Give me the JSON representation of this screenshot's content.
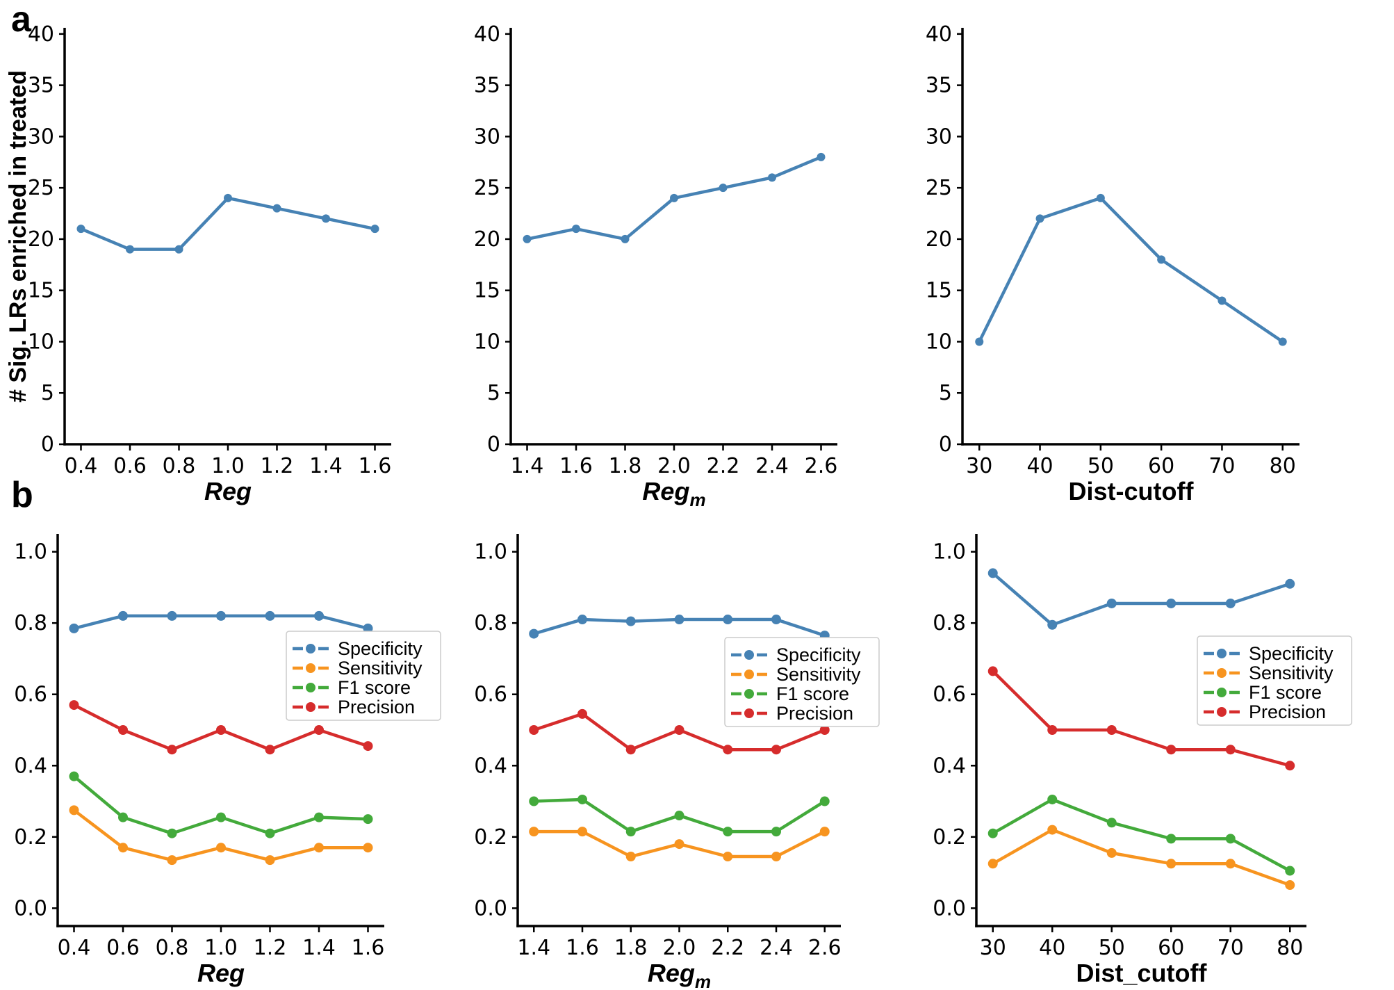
{
  "figure": {
    "panel_a_label": "a",
    "panel_b_label": "b",
    "row_a_ylabel": "# Sig. LRs enriched in treated"
  },
  "colors": {
    "blue": "#4682b4",
    "orange": "#f7941f",
    "green": "#43aa3b",
    "red": "#d62c2c",
    "axis": "#000000",
    "legend_border": "#cccccc",
    "background": "#ffffff"
  },
  "chart_data": [
    {
      "id": "a1",
      "type": "line",
      "panel": "a",
      "title": "",
      "ylabel": "# Sig. LRs enriched in treated",
      "xlabel": {
        "text": "Reg",
        "sub": "",
        "italic": true
      },
      "x": [
        0.4,
        0.6,
        0.8,
        1.0,
        1.2,
        1.4,
        1.6
      ],
      "xtick_labels": [
        "0.4",
        "0.6",
        "0.8",
        "1.0",
        "1.2",
        "1.4",
        "1.6"
      ],
      "ylim": [
        0,
        40
      ],
      "yticks": [
        0,
        5,
        10,
        15,
        20,
        25,
        30,
        35,
        40
      ],
      "ytick_labels": [
        "0",
        "5",
        "10",
        "15",
        "20",
        "25",
        "30",
        "35",
        "40"
      ],
      "grid": false,
      "legend": false,
      "series": [
        {
          "name": "# Sig. LRs enriched in treated",
          "color": "blue",
          "values": [
            21,
            19,
            19,
            24,
            23,
            22,
            21
          ]
        }
      ]
    },
    {
      "id": "a2",
      "type": "line",
      "panel": "a",
      "title": "",
      "ylabel": "",
      "xlabel": {
        "text": "Reg",
        "sub": "m",
        "italic": true
      },
      "x": [
        1.4,
        1.6,
        1.8,
        2.0,
        2.2,
        2.4,
        2.6
      ],
      "xtick_labels": [
        "1.4",
        "1.6",
        "1.8",
        "2.0",
        "2.2",
        "2.4",
        "2.6"
      ],
      "ylim": [
        0,
        40
      ],
      "yticks": [
        0,
        5,
        10,
        15,
        20,
        25,
        30,
        35,
        40
      ],
      "ytick_labels": [
        "0",
        "5",
        "10",
        "15",
        "20",
        "25",
        "30",
        "35",
        "40"
      ],
      "grid": false,
      "legend": false,
      "series": [
        {
          "name": "# Sig. LRs enriched in treated",
          "color": "blue",
          "values": [
            20,
            21,
            20,
            24,
            25,
            26,
            28
          ]
        }
      ]
    },
    {
      "id": "a3",
      "type": "line",
      "panel": "a",
      "title": "",
      "ylabel": "",
      "xlabel": {
        "text": "Dist-cutoff",
        "sub": "",
        "italic": false
      },
      "x": [
        30,
        40,
        50,
        60,
        70,
        80
      ],
      "xtick_labels": [
        "30",
        "40",
        "50",
        "60",
        "70",
        "80"
      ],
      "ylim": [
        0,
        40
      ],
      "yticks": [
        0,
        5,
        10,
        15,
        20,
        25,
        30,
        35,
        40
      ],
      "ytick_labels": [
        "0",
        "5",
        "10",
        "15",
        "20",
        "25",
        "30",
        "35",
        "40"
      ],
      "grid": false,
      "legend": false,
      "series": [
        {
          "name": "# Sig. LRs enriched in treated",
          "color": "blue",
          "values": [
            10,
            22,
            24,
            18,
            14,
            10
          ]
        }
      ]
    },
    {
      "id": "b1",
      "type": "line",
      "panel": "b",
      "title": "",
      "ylabel": "",
      "xlabel": {
        "text": "Reg",
        "sub": "",
        "italic": true
      },
      "x": [
        0.4,
        0.6,
        0.8,
        1.0,
        1.2,
        1.4,
        1.6
      ],
      "xtick_labels": [
        "0.4",
        "0.6",
        "0.8",
        "1.0",
        "1.2",
        "1.4",
        "1.6"
      ],
      "ylim": [
        0,
        1.05
      ],
      "yticks": [
        0.0,
        0.2,
        0.4,
        0.6,
        0.8,
        1.0
      ],
      "ytick_labels": [
        "0.0",
        "0.2",
        "0.4",
        "0.6",
        "0.8",
        "1.0"
      ],
      "grid": false,
      "legend": true,
      "legend_position": "center right",
      "series": [
        {
          "name": "Specificity",
          "color": "blue",
          "values": [
            0.785,
            0.82,
            0.82,
            0.82,
            0.82,
            0.82,
            0.785
          ]
        },
        {
          "name": "Sensitivity",
          "color": "orange",
          "values": [
            0.275,
            0.17,
            0.135,
            0.17,
            0.135,
            0.17,
            0.17
          ]
        },
        {
          "name": "F1 score",
          "color": "green",
          "values": [
            0.37,
            0.255,
            0.21,
            0.255,
            0.21,
            0.255,
            0.25
          ]
        },
        {
          "name": "Precision",
          "color": "red",
          "values": [
            0.57,
            0.5,
            0.445,
            0.5,
            0.445,
            0.5,
            0.455
          ]
        }
      ]
    },
    {
      "id": "b2",
      "type": "line",
      "panel": "b",
      "title": "",
      "ylabel": "",
      "xlabel": {
        "text": "Reg",
        "sub": "m",
        "italic": true
      },
      "x": [
        1.4,
        1.6,
        1.8,
        2.0,
        2.2,
        2.4,
        2.6
      ],
      "xtick_labels": [
        "1.4",
        "1.6",
        "1.8",
        "2.0",
        "2.2",
        "2.4",
        "2.6"
      ],
      "ylim": [
        0,
        1.05
      ],
      "yticks": [
        0.0,
        0.2,
        0.4,
        0.6,
        0.8,
        1.0
      ],
      "ytick_labels": [
        "0.0",
        "0.2",
        "0.4",
        "0.6",
        "0.8",
        "1.0"
      ],
      "grid": false,
      "legend": true,
      "legend_position": "center right",
      "series": [
        {
          "name": "Specificity",
          "color": "blue",
          "values": [
            0.77,
            0.81,
            0.805,
            0.81,
            0.81,
            0.81,
            0.765
          ]
        },
        {
          "name": "Sensitivity",
          "color": "orange",
          "values": [
            0.215,
            0.215,
            0.145,
            0.18,
            0.145,
            0.145,
            0.215
          ]
        },
        {
          "name": "F1 score",
          "color": "green",
          "values": [
            0.3,
            0.305,
            0.215,
            0.26,
            0.215,
            0.215,
            0.3
          ]
        },
        {
          "name": "Precision",
          "color": "red",
          "values": [
            0.5,
            0.545,
            0.445,
            0.5,
            0.445,
            0.445,
            0.5
          ]
        }
      ]
    },
    {
      "id": "b3",
      "type": "line",
      "panel": "b",
      "title": "",
      "ylabel": "",
      "xlabel": {
        "text": "Dist_cutoff",
        "sub": "",
        "italic": false
      },
      "x": [
        30,
        40,
        50,
        60,
        70,
        80
      ],
      "xtick_labels": [
        "30",
        "40",
        "50",
        "60",
        "70",
        "80"
      ],
      "ylim": [
        0,
        1.05
      ],
      "yticks": [
        0.0,
        0.2,
        0.4,
        0.6,
        0.8,
        1.0
      ],
      "ytick_labels": [
        "0.0",
        "0.2",
        "0.4",
        "0.6",
        "0.8",
        "1.0"
      ],
      "grid": false,
      "legend": true,
      "legend_position": "center right",
      "series": [
        {
          "name": "Specificity",
          "color": "blue",
          "values": [
            0.94,
            0.795,
            0.855,
            0.855,
            0.855,
            0.91
          ]
        },
        {
          "name": "Sensitivity",
          "color": "orange",
          "values": [
            0.125,
            0.22,
            0.155,
            0.125,
            0.125,
            0.065
          ]
        },
        {
          "name": "F1 score",
          "color": "green",
          "values": [
            0.21,
            0.305,
            0.24,
            0.195,
            0.195,
            0.105
          ]
        },
        {
          "name": "Precision",
          "color": "red",
          "values": [
            0.665,
            0.5,
            0.5,
            0.445,
            0.445,
            0.4
          ]
        }
      ]
    }
  ]
}
